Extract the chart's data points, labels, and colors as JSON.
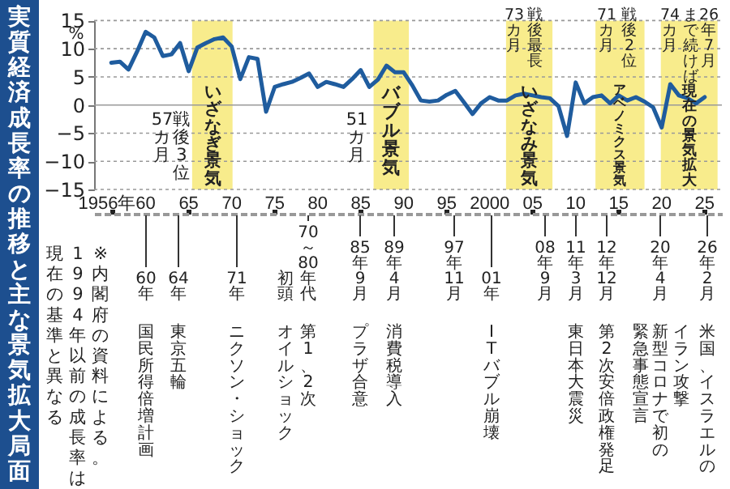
{
  "chart_data": {
    "type": "line",
    "title": "実質経済成長率の推移と主な景気拡大局面",
    "ylabel": "%",
    "x": [
      1956,
      1957,
      1958,
      1959,
      1960,
      1961,
      1962,
      1963,
      1964,
      1965,
      1966,
      1967,
      1968,
      1969,
      1970,
      1971,
      1972,
      1973,
      1974,
      1975,
      1976,
      1977,
      1978,
      1979,
      1980,
      1981,
      1982,
      1983,
      1984,
      1985,
      1986,
      1987,
      1988,
      1989,
      1990,
      1991,
      1992,
      1993,
      1994,
      1995,
      1996,
      1997,
      1998,
      1999,
      2000,
      2001,
      2002,
      2003,
      2004,
      2005,
      2006,
      2007,
      2008,
      2009,
      2010,
      2011,
      2012,
      2013,
      2014,
      2015,
      2016,
      2017,
      2018,
      2019,
      2020,
      2021,
      2022,
      2023,
      2024,
      2025
    ],
    "series": [
      {
        "color": "#1f5c9e",
        "values": [
          7.5,
          7.7,
          6.3,
          9.5,
          13,
          12,
          8.7,
          9,
          11,
          6,
          10.2,
          11,
          11.7,
          12,
          10.4,
          4.6,
          8.5,
          8.2,
          -1.2,
          3.2,
          3.7,
          4.1,
          4.8,
          5.6,
          3.2,
          4.1,
          3.7,
          3.2,
          4.6,
          6.2,
          3.2,
          4.5,
          7,
          5.8,
          5.8,
          3.5,
          0.8,
          0.6,
          0.8,
          1.8,
          2.5,
          0.5,
          -1.6,
          0.3,
          1.4,
          0.8,
          0.8,
          1.7,
          2,
          1.7,
          1.4,
          1.2,
          -0.2,
          -5.5,
          4,
          0.3,
          1.4,
          1.7,
          0.3,
          1.7,
          0.8,
          1.4,
          0.6,
          -0.4,
          -4,
          3.7,
          1.7,
          1.2,
          0.3,
          1.4
        ]
      }
    ],
    "xlim": [
      1954,
      2027
    ],
    "ylim": [
      -15,
      15
    ],
    "xticks": [
      {
        "value": 1956,
        "label": "1956年"
      },
      {
        "value": 1960,
        "label": "60"
      },
      {
        "value": 1965,
        "label": "65"
      },
      {
        "value": 1970,
        "label": "70"
      },
      {
        "value": 1975,
        "label": "75"
      },
      {
        "value": 1980,
        "label": "80"
      },
      {
        "value": 1985,
        "label": "85"
      },
      {
        "value": 1990,
        "label": "90"
      },
      {
        "value": 1995,
        "label": "95"
      },
      {
        "value": 2000,
        "label": "2000"
      },
      {
        "value": 2005,
        "label": "05"
      },
      {
        "value": 2010,
        "label": "10"
      },
      {
        "value": 2015,
        "label": "15"
      },
      {
        "value": 2020,
        "label": "20"
      },
      {
        "value": 2025,
        "label": "25"
      }
    ],
    "yticks": [
      -15,
      -10,
      -5,
      0,
      5,
      10,
      15
    ],
    "grid": "y",
    "bands": [
      {
        "axis": "x",
        "from": 1965.4,
        "to": 1970.1,
        "label": "いざなぎ景気",
        "color": "#f8ec8c"
      },
      {
        "axis": "x",
        "from": 1986.5,
        "to": 1990.6,
        "label": "バブル景気",
        "color": "#f8ec8c"
      },
      {
        "axis": "x",
        "from": 2001.9,
        "to": 2007.3,
        "label": "いざなみ景気",
        "color": "#f8ec8c"
      },
      {
        "axis": "x",
        "from": 2012.3,
        "to": 2018,
        "label": "アベノミクス景気",
        "color": "#f8ec8c"
      },
      {
        "axis": "x",
        "from": 2019.9,
        "to": 2026.5,
        "label": "現在の景気拡大",
        "color": "#f8ec8c"
      }
    ],
    "annotations": [
      "57カ月",
      "戦後3位",
      "51カ月",
      "73カ月",
      "戦後最長",
      "71カ月",
      "戦後2位",
      "74カ月",
      "まで続けば",
      "26年7月",
      "※内閣府の資料による。",
      "1994年以前の成長率は",
      "現在の基準と異なる",
      "60年",
      "国民所得倍増計画",
      "64年",
      "東京五輪",
      "71年",
      "ニクソン・ショック",
      "70～80年代",
      "初頭",
      "第1、2次",
      "オイルショック",
      "85年9月",
      "プラザ合意",
      "89年4月",
      "消費税導入",
      "97年11月",
      "01年",
      "ITバブル崩壊",
      "08年9月",
      "11年3月",
      "東日本大震災",
      "12年12月",
      "第2次安倍政権発足",
      "20年4月",
      "新型コロナで初の",
      "緊急事態宣言",
      "26年2月",
      "米国、イスラエルの",
      "イラン攻撃"
    ]
  }
}
